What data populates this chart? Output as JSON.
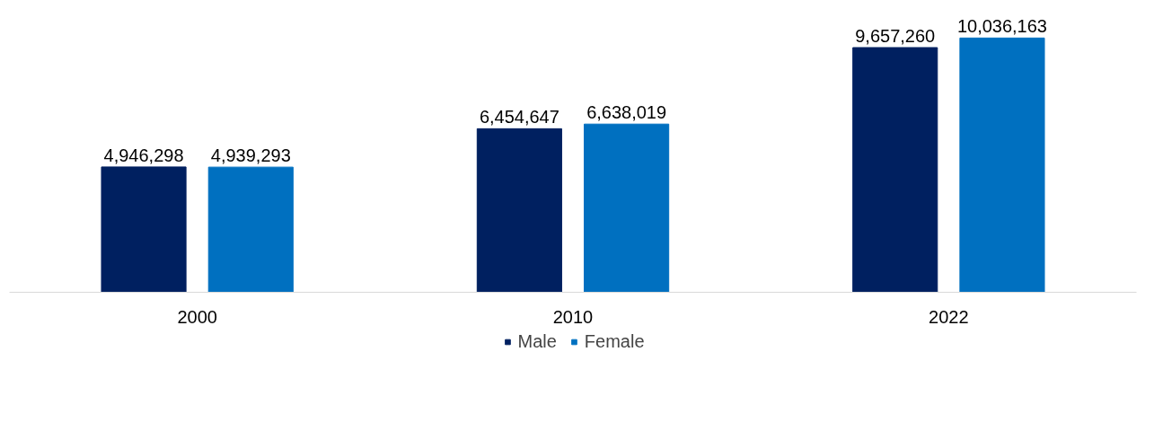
{
  "chart_data": {
    "type": "bar",
    "categories": [
      "2000",
      "2010",
      "2022"
    ],
    "series": [
      {
        "name": "Male",
        "color": "#002060",
        "values": [
          4946298,
          6454647,
          9657260
        ],
        "value_labels": [
          "4,946,298",
          "6,454,647",
          "9,657,260"
        ]
      },
      {
        "name": "Female",
        "color": "#0070c0",
        "values": [
          4939293,
          6638019,
          10036163
        ],
        "value_labels": [
          "4,939,293",
          "6,638,019",
          "10,036,163"
        ]
      }
    ],
    "legend": "bottom"
  }
}
